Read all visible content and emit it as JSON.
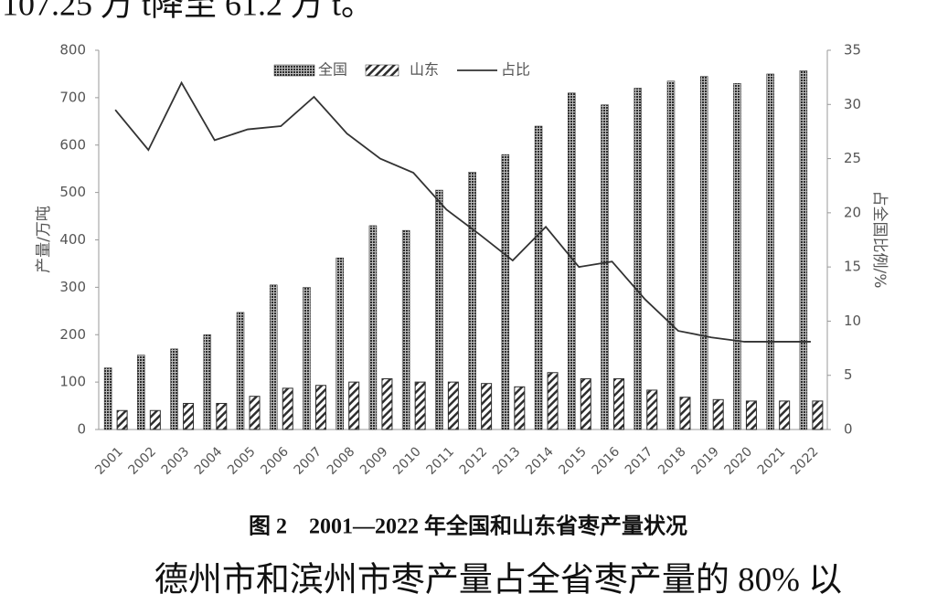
{
  "top_text": "107.25 万 t降至 61.2 万 t。",
  "chart_data": {
    "type": "bar-line",
    "ylabel": "产量/万吨",
    "y2label": "占全国比例/%",
    "categories": [
      "2001",
      "2002",
      "2003",
      "2004",
      "2005",
      "2006",
      "2007",
      "2008",
      "2009",
      "2010",
      "2011",
      "2012",
      "2013",
      "2014",
      "2015",
      "2016",
      "2017",
      "2018",
      "2019",
      "2020",
      "2021",
      "2022"
    ],
    "series": [
      {
        "name": "全国",
        "type": "bar",
        "color": "#2e2e2e",
        "values": [
          130,
          157,
          170,
          200,
          247,
          305,
          300,
          362,
          430,
          420,
          505,
          543,
          580,
          640,
          710,
          685,
          720,
          735,
          745,
          730,
          750,
          757
        ]
      },
      {
        "name": "山东",
        "type": "bar",
        "color": "#2e2e2e",
        "values": [
          40,
          40,
          55,
          55,
          70,
          87,
          93,
          100,
          107,
          100,
          100,
          97,
          90,
          120,
          107,
          107,
          83,
          68,
          63,
          60,
          60,
          60
        ]
      },
      {
        "name": "占比",
        "type": "line",
        "axis": "y2",
        "color": "#333333",
        "values": [
          29.5,
          25.8,
          32,
          26.7,
          27.7,
          28,
          30.7,
          27.3,
          25,
          23.7,
          20.3,
          18,
          15.6,
          18.7,
          15,
          15.5,
          12,
          9.1,
          8.5,
          8.1,
          8.1,
          8.1
        ]
      }
    ],
    "ylim": [
      0,
      800
    ],
    "yticks": [
      0,
      100,
      200,
      300,
      400,
      500,
      600,
      700,
      800
    ],
    "y2lim": [
      0,
      35
    ],
    "y2ticks": [
      0,
      5,
      10,
      15,
      20,
      25,
      30,
      35
    ],
    "legend": "top"
  },
  "caption": "图 2　2001—2022 年全国和山东省枣产量状况",
  "bottom_text": "德州市和滨州市枣产量占全省枣产量的 80% 以"
}
